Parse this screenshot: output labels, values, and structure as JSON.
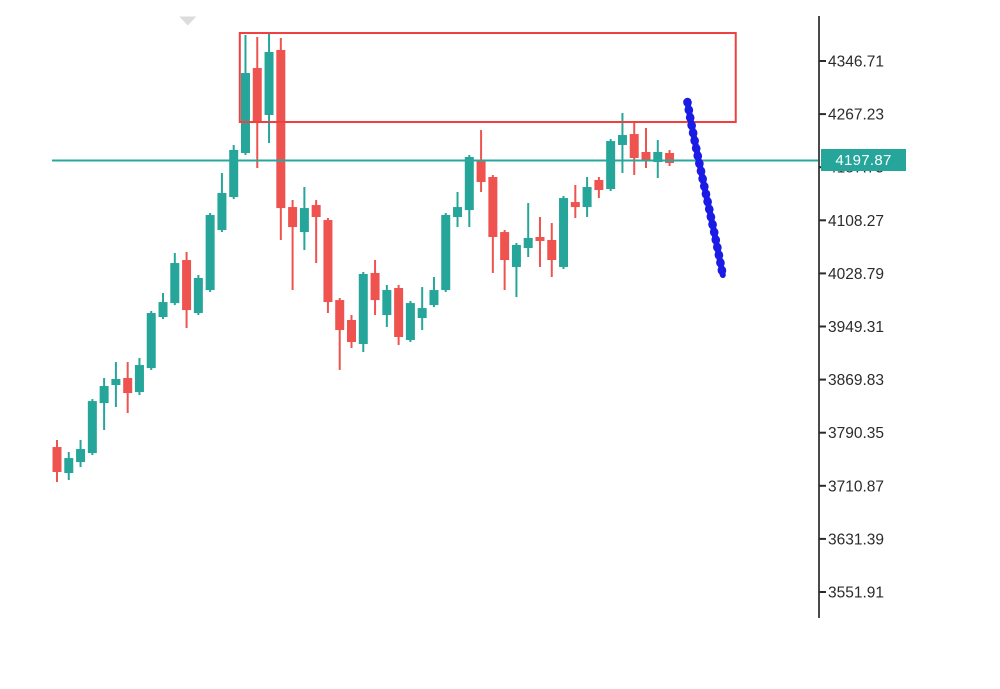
{
  "chart_data": {
    "type": "candlestick",
    "title": "",
    "legend": "none",
    "grid": false,
    "y_axis": {
      "side": "right",
      "ticks": [
        "4346.71",
        "4267.23",
        "4187.75",
        "4108.27",
        "4028.79",
        "3949.31",
        "3869.83",
        "3790.35",
        "3710.87",
        "3631.39",
        "3551.91"
      ],
      "tick_values": [
        4346.71,
        4267.23,
        4187.75,
        4108.27,
        4028.79,
        3949.31,
        3869.83,
        3790.35,
        3710.87,
        3631.39,
        3551.91
      ],
      "ylim": [
        3480,
        4440
      ]
    },
    "current_price": {
      "value": 4197.87,
      "label": "4197.87"
    },
    "candles": [
      [
        3768.9,
        3779.4,
        3716.5,
        3731.5
      ],
      [
        3730.0,
        3761.4,
        3719.5,
        3752.4
      ],
      [
        3746.4,
        3779.4,
        3738.9,
        3765.9
      ],
      [
        3759.9,
        3840.7,
        3756.9,
        3837.7
      ],
      [
        3834.7,
        3872.2,
        3794.4,
        3860.2
      ],
      [
        3861.7,
        3896.1,
        3828.8,
        3870.7
      ],
      [
        3872.2,
        3896.1,
        3819.8,
        3849.7
      ],
      [
        3851.2,
        3902.1,
        3846.7,
        3891.6
      ],
      [
        3887.1,
        3972.5,
        3884.2,
        3969.5
      ],
      [
        3963.5,
        3999.4,
        3960.5,
        3985.9
      ],
      [
        3984.4,
        4059.3,
        3981.4,
        4044.3
      ],
      [
        4048.8,
        4060.8,
        3947.0,
        3973.9
      ],
      [
        3969.5,
        4026.4,
        3966.5,
        4021.9
      ],
      [
        4003.9,
        4119.2,
        4000.9,
        4116.2
      ],
      [
        4093.7,
        4179.1,
        4090.7,
        4149.1
      ],
      [
        4143.1,
        4221.0,
        4140.1,
        4213.5
      ],
      [
        4209.0,
        4385.6,
        4206.0,
        4328.7
      ],
      [
        4336.2,
        4382.6,
        4186.5,
        4253.9
      ],
      [
        4265.9,
        4388.6,
        4223.9,
        4360.2
      ],
      [
        4363.2,
        4381.1,
        4078.8,
        4126.6
      ],
      [
        4128.1,
        4138.6,
        4003.9,
        4098.2
      ],
      [
        4090.7,
        4158.1,
        4063.8,
        4126.6
      ],
      [
        4131.1,
        4138.6,
        4044.3,
        4113.2
      ],
      [
        4108.7,
        4111.7,
        3969.5,
        3985.9
      ],
      [
        3988.9,
        3991.9,
        3884.2,
        3944.0
      ],
      [
        3959.0,
        3966.5,
        3917.1,
        3926.1
      ],
      [
        3923.1,
        4030.9,
        3911.1,
        4027.9
      ],
      [
        4029.4,
        4048.8,
        3966.5,
        3988.9
      ],
      [
        3966.5,
        4011.4,
        3948.5,
        4003.9
      ],
      [
        4006.9,
        4011.4,
        3921.6,
        3933.6
      ],
      [
        3929.1,
        3987.4,
        3926.1,
        3984.4
      ],
      [
        3962.0,
        4008.4,
        3944.0,
        3976.9
      ],
      [
        3981.4,
        4023.4,
        3978.4,
        4003.9
      ],
      [
        4003.9,
        4119.2,
        4000.9,
        4116.2
      ],
      [
        4113.2,
        4150.6,
        4098.2,
        4128.1
      ],
      [
        4123.6,
        4206.0,
        4098.2,
        4203.0
      ],
      [
        4198.5,
        4243.4,
        4150.6,
        4165.6
      ],
      [
        4173.1,
        4176.1,
        4029.4,
        4083.3
      ],
      [
        4090.7,
        4093.7,
        4003.9,
        4048.8
      ],
      [
        4038.4,
        4074.3,
        3993.4,
        4071.3
      ],
      [
        4066.8,
        4134.1,
        4053.3,
        4081.8
      ],
      [
        4083.3,
        4113.2,
        4038.4,
        4077.3
      ],
      [
        4078.8,
        4104.2,
        4023.4,
        4048.8
      ],
      [
        4038.4,
        4144.6,
        4035.4,
        4141.6
      ],
      [
        4135.6,
        4161.1,
        4111.7,
        4128.1
      ],
      [
        4128.1,
        4173.1,
        4113.2,
        4158.1
      ],
      [
        4168.6,
        4173.1,
        4141.6,
        4153.6
      ],
      [
        4155.1,
        4229.9,
        4152.1,
        4226.9
      ],
      [
        4221.0,
        4268.9,
        4179.1,
        4235.9
      ],
      [
        4237.4,
        4255.4,
        4176.1,
        4201.5
      ],
      [
        4210.5,
        4246.4,
        4186.5,
        4198.5
      ],
      [
        4195.5,
        4228.4,
        4171.6,
        4210.5
      ],
      [
        4209.0,
        4213.5,
        4189.5,
        4194.0
      ]
    ],
    "colors": {
      "up": "#26a69a",
      "down": "#ef5350",
      "price_line": "#2aa79d",
      "price_tag_bg": "#26a69a",
      "resistance_box": "#ef4040",
      "trend_line": "#1b1be6",
      "axis": "#4a4a4a",
      "tick_text": "#2b2b2b",
      "marker": "#dcdcdc"
    },
    "annotations": {
      "resistance_box": {
        "shape": "rectangle",
        "from_index": 15.9,
        "to_index": 58.0,
        "price_top": 4388.6,
        "price_bottom": 4255.4
      },
      "current_price_line": {
        "shape": "horizontal-line",
        "price": 4197.87
      },
      "trend_line": {
        "shape": "marker-stroke",
        "from_index": 53.9,
        "from_price": 4285.3,
        "to_index": 56.9,
        "to_price": 4026.4,
        "direction": "down"
      },
      "marker": {
        "shape": "triangle-down",
        "x_index": 11.1,
        "price": 4406.6
      }
    }
  }
}
